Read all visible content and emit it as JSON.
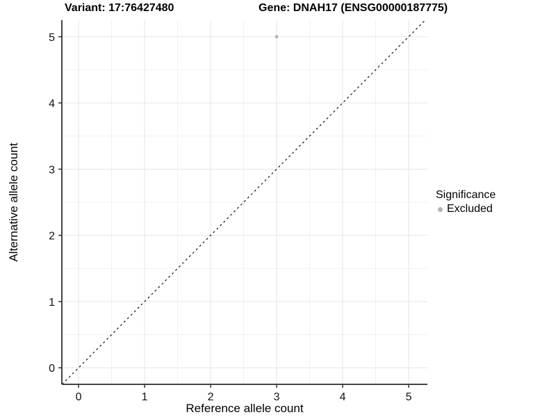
{
  "chart_data": {
    "type": "scatter",
    "titles": [
      "Variant: 17:76427480",
      "Gene: DNAH17 (ENSG00000187775)"
    ],
    "xlabel": "Reference allele count",
    "ylabel": "Alternative allele count",
    "xlim": [
      -0.253,
      5.284
    ],
    "ylim": [
      -0.25,
      5.25
    ],
    "xticks": [
      "0",
      "1",
      "2",
      "3",
      "4",
      "5"
    ],
    "yticks": [
      "0",
      "1",
      "2",
      "3",
      "4",
      "5"
    ],
    "xtick_values": [
      0,
      1,
      2,
      3,
      4,
      5
    ],
    "ytick_values": [
      0,
      1,
      2,
      3,
      4,
      5
    ],
    "grid": {
      "major": true,
      "minor": true,
      "minor_step": 0.5
    },
    "series": [
      {
        "name": "Excluded",
        "color": "#b5b5b5",
        "points": [
          [
            3,
            5
          ]
        ],
        "marker": "circle",
        "marker_radius": 2.5
      }
    ],
    "reference_line": {
      "equation": "y = x",
      "style": "dashed",
      "color": "#111111"
    },
    "legend": {
      "title": "Significance",
      "position": "right",
      "items": [
        {
          "label": "Excluded",
          "color": "#b5b5b5"
        }
      ]
    },
    "colors": {
      "background": "#ffffff",
      "grid_major": "#e4e4e4",
      "grid_minor": "#f2f2f2",
      "axis_line": "#444444",
      "tick_mark": "#333333",
      "tick_text": "#111111"
    }
  }
}
